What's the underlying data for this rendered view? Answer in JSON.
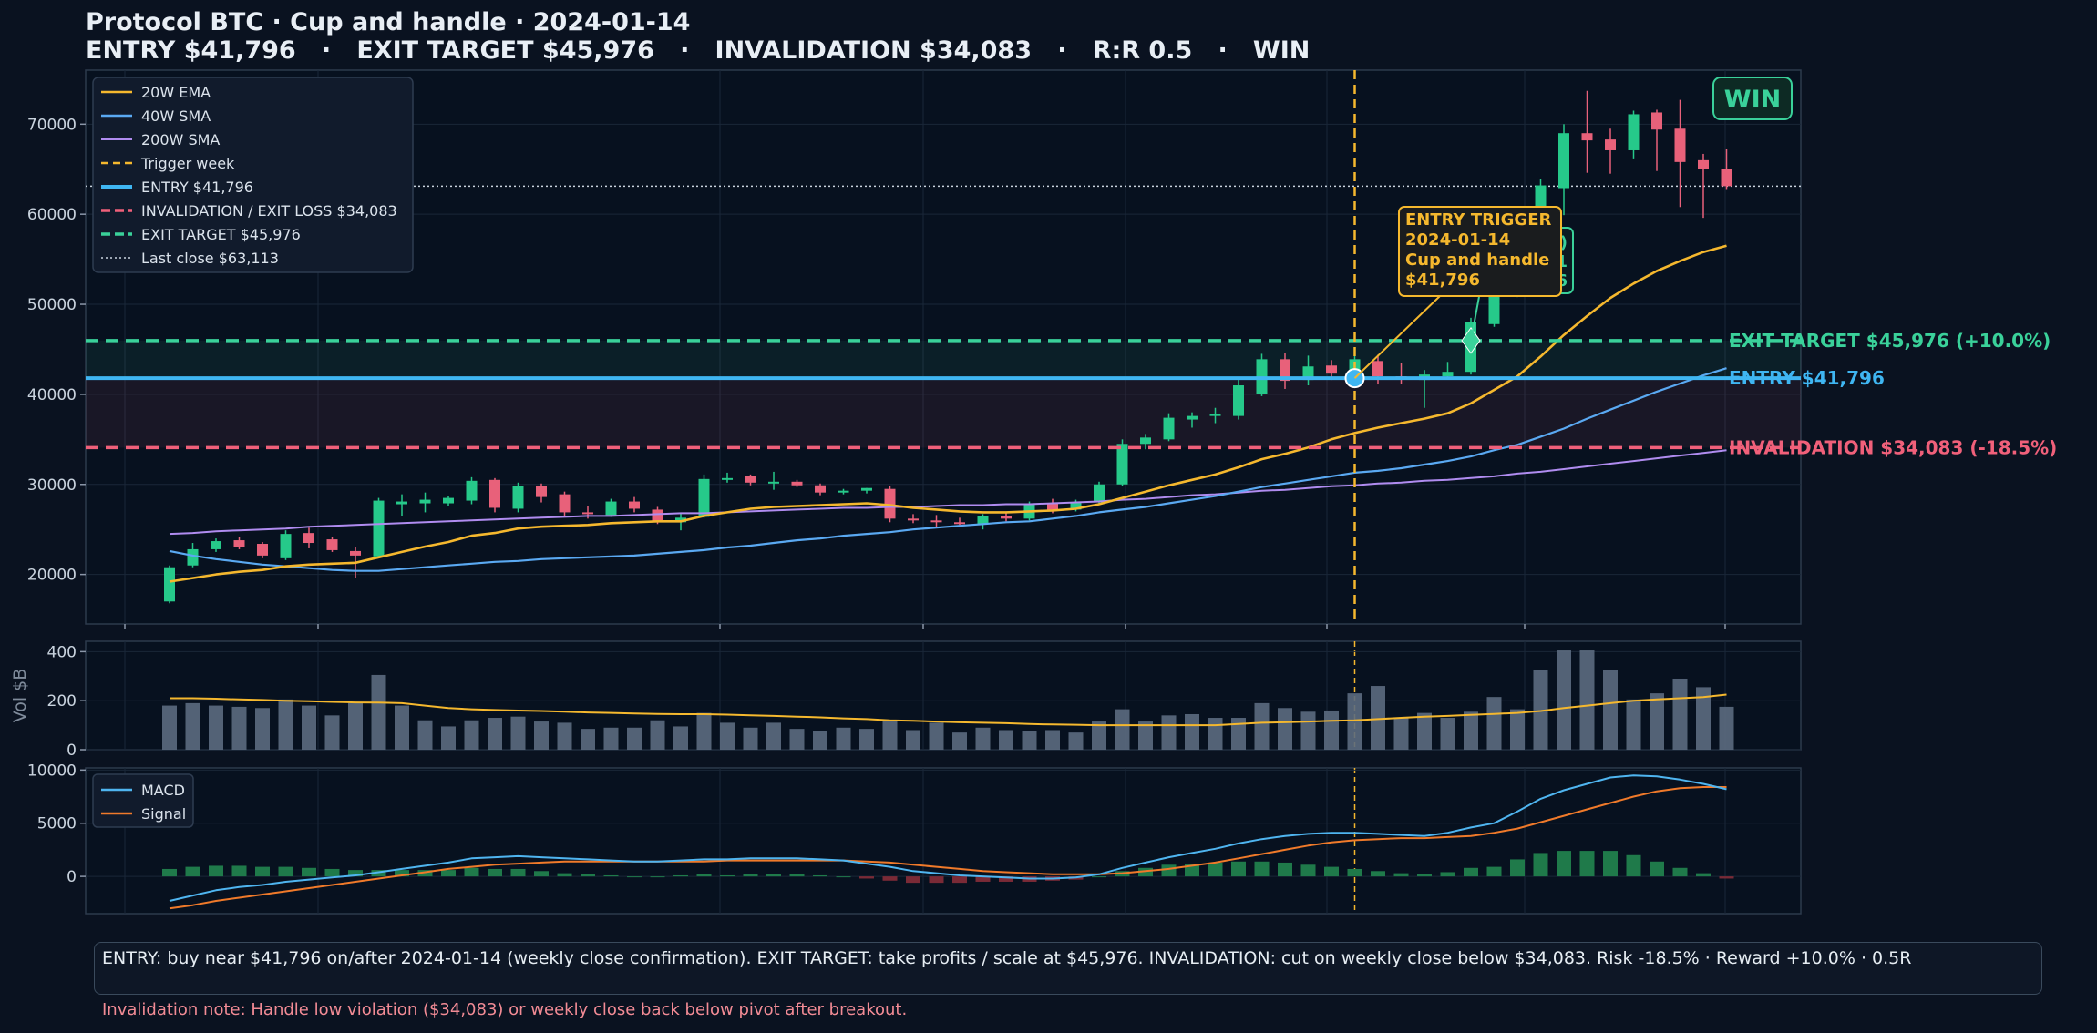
{
  "header": {
    "title_line1": "Protocol BTC · Cup and handle · 2024-01-14",
    "title_line2": "ENTRY $41,796   ·   EXIT TARGET $45,976   ·   INVALIDATION $34,083   ·   R:R 0.5   ·   WIN"
  },
  "colors": {
    "background": "#0a1220",
    "panel": "#07111f",
    "up": "#26c98a",
    "down": "#e8617a",
    "ema20": "#f5b82e",
    "sma40": "#5aa9f2",
    "sma200": "#b08cf0",
    "entry": "#3fb6f2",
    "invalidation": "#f0607a",
    "target": "#3ad19a",
    "trigger": "#f5b82e",
    "volume": "#5c6b80",
    "macd": "#4fb5f0",
    "signal": "#f07a2a"
  },
  "badge": "WIN",
  "footer": {
    "summary": "ENTRY: buy near $41,796 on/after 2024-01-14 (weekly close confirmation).   EXIT TARGET: take profits / scale at $45,976.   INVALIDATION: cut on weekly close below $34,083.   Risk -18.5% · Reward +10.0% · 0.5R",
    "note": "Invalidation note: Handle low violation ($34,083) or weekly close back below pivot after breakout."
  },
  "chart_data": {
    "type": "candlestick",
    "price_panel": {
      "ylim": [
        14500,
        76000
      ],
      "yticks": [
        "20000",
        "30000",
        "40000",
        "50000",
        "60000",
        "70000"
      ],
      "grid": true,
      "legend_position": "top-left",
      "legend": [
        "20W EMA",
        "40W SMA",
        "200W SMA",
        "Trigger week",
        "ENTRY $41,796",
        "INVALIDATION / EXIT LOSS $34,083",
        "EXIT TARGET $45,976",
        "Last close $63,113"
      ],
      "levels": {
        "entry": 41796,
        "invalidation": 34083,
        "target": 45976,
        "last_close": 63113
      },
      "level_labels": {
        "target": "EXIT TARGET  $45,976  (+10.0%)",
        "entry": "ENTRY  $41,796",
        "invalidation": "INVALIDATION  $34,083  (-18.5%)"
      },
      "trigger_index": 51,
      "exit_index": 56,
      "candles": [
        {
          "o": 17000,
          "h": 21000,
          "l": 16800,
          "c": 20800
        },
        {
          "o": 21000,
          "h": 23500,
          "l": 20800,
          "c": 22800
        },
        {
          "o": 22800,
          "h": 24000,
          "l": 22500,
          "c": 23700
        },
        {
          "o": 23800,
          "h": 24200,
          "l": 22800,
          "c": 23000
        },
        {
          "o": 23400,
          "h": 23600,
          "l": 21800,
          "c": 22100
        },
        {
          "o": 21800,
          "h": 24900,
          "l": 21600,
          "c": 24500
        },
        {
          "o": 24600,
          "h": 25200,
          "l": 22900,
          "c": 23500
        },
        {
          "o": 23900,
          "h": 24200,
          "l": 22500,
          "c": 22700
        },
        {
          "o": 22600,
          "h": 23000,
          "l": 19600,
          "c": 22100
        },
        {
          "o": 22000,
          "h": 28500,
          "l": 21900,
          "c": 28200
        },
        {
          "o": 27800,
          "h": 28900,
          "l": 26500,
          "c": 28100
        },
        {
          "o": 27900,
          "h": 29100,
          "l": 26900,
          "c": 28300
        },
        {
          "o": 27900,
          "h": 28700,
          "l": 27600,
          "c": 28500
        },
        {
          "o": 28200,
          "h": 30800,
          "l": 27800,
          "c": 30400
        },
        {
          "o": 30500,
          "h": 30700,
          "l": 26900,
          "c": 27400
        },
        {
          "o": 27300,
          "h": 30200,
          "l": 26900,
          "c": 29800
        },
        {
          "o": 29800,
          "h": 30100,
          "l": 28000,
          "c": 28600
        },
        {
          "o": 28900,
          "h": 29200,
          "l": 26500,
          "c": 26900
        },
        {
          "o": 26900,
          "h": 27600,
          "l": 26200,
          "c": 26700
        },
        {
          "o": 26600,
          "h": 28400,
          "l": 26400,
          "c": 28100
        },
        {
          "o": 28100,
          "h": 28600,
          "l": 26900,
          "c": 27300
        },
        {
          "o": 27200,
          "h": 27500,
          "l": 25600,
          "c": 25900
        },
        {
          "o": 25800,
          "h": 26800,
          "l": 24900,
          "c": 26300
        },
        {
          "o": 26400,
          "h": 31100,
          "l": 26300,
          "c": 30600
        },
        {
          "o": 30500,
          "h": 31300,
          "l": 30200,
          "c": 30700
        },
        {
          "o": 30900,
          "h": 31100,
          "l": 29900,
          "c": 30200
        },
        {
          "o": 30100,
          "h": 31400,
          "l": 29400,
          "c": 30300
        },
        {
          "o": 30300,
          "h": 30500,
          "l": 29700,
          "c": 29900
        },
        {
          "o": 29900,
          "h": 30100,
          "l": 28800,
          "c": 29100
        },
        {
          "o": 29100,
          "h": 29500,
          "l": 28900,
          "c": 29300
        },
        {
          "o": 29300,
          "h": 29600,
          "l": 29000,
          "c": 29600
        },
        {
          "o": 29500,
          "h": 29800,
          "l": 25800,
          "c": 26200
        },
        {
          "o": 26200,
          "h": 26700,
          "l": 25700,
          "c": 26000
        },
        {
          "o": 26000,
          "h": 26600,
          "l": 25300,
          "c": 25800
        },
        {
          "o": 25800,
          "h": 26300,
          "l": 25500,
          "c": 25700
        },
        {
          "o": 25600,
          "h": 26700,
          "l": 25000,
          "c": 26500
        },
        {
          "o": 26500,
          "h": 26800,
          "l": 25900,
          "c": 26200
        },
        {
          "o": 26200,
          "h": 28100,
          "l": 26000,
          "c": 27900
        },
        {
          "o": 27900,
          "h": 28400,
          "l": 26800,
          "c": 27200
        },
        {
          "o": 27200,
          "h": 28300,
          "l": 27000,
          "c": 28000
        },
        {
          "o": 28000,
          "h": 30300,
          "l": 27800,
          "c": 30000
        },
        {
          "o": 30000,
          "h": 35000,
          "l": 29800,
          "c": 34500
        },
        {
          "o": 34500,
          "h": 35600,
          "l": 33900,
          "c": 35200
        },
        {
          "o": 35000,
          "h": 37900,
          "l": 34800,
          "c": 37400
        },
        {
          "o": 37200,
          "h": 38000,
          "l": 36300,
          "c": 37600
        },
        {
          "o": 37600,
          "h": 38500,
          "l": 36800,
          "c": 37800
        },
        {
          "o": 37600,
          "h": 41600,
          "l": 37200,
          "c": 41000
        },
        {
          "o": 40000,
          "h": 44500,
          "l": 39800,
          "c": 43900
        },
        {
          "o": 43900,
          "h": 44600,
          "l": 40600,
          "c": 41500
        },
        {
          "o": 41600,
          "h": 44300,
          "l": 41000,
          "c": 43100
        },
        {
          "o": 43200,
          "h": 43800,
          "l": 41600,
          "c": 42300
        },
        {
          "o": 42100,
          "h": 44700,
          "l": 41800,
          "c": 43900
        },
        {
          "o": 43700,
          "h": 44400,
          "l": 41100,
          "c": 42000
        },
        {
          "o": 42000,
          "h": 43500,
          "l": 41200,
          "c": 41900
        },
        {
          "o": 41600,
          "h": 42700,
          "l": 38500,
          "c": 42200
        },
        {
          "o": 42000,
          "h": 43600,
          "l": 41700,
          "c": 42500
        },
        {
          "o": 42500,
          "h": 48500,
          "l": 42200,
          "c": 48000
        },
        {
          "o": 47800,
          "h": 52900,
          "l": 47500,
          "c": 51800
        },
        {
          "o": 51500,
          "h": 57300,
          "l": 50800,
          "c": 57000
        },
        {
          "o": 57000,
          "h": 63900,
          "l": 56500,
          "c": 63200
        },
        {
          "o": 62900,
          "h": 70000,
          "l": 59900,
          "c": 69000
        },
        {
          "o": 69000,
          "h": 73700,
          "l": 64600,
          "c": 68200
        },
        {
          "o": 68300,
          "h": 69500,
          "l": 64500,
          "c": 67100
        },
        {
          "o": 67100,
          "h": 71500,
          "l": 66200,
          "c": 71100
        },
        {
          "o": 71300,
          "h": 71600,
          "l": 64800,
          "c": 69400
        },
        {
          "o": 69500,
          "h": 72700,
          "l": 60800,
          "c": 65800
        },
        {
          "o": 66000,
          "h": 66700,
          "l": 59600,
          "c": 65000
        },
        {
          "o": 65000,
          "h": 67200,
          "l": 62700,
          "c": 63113
        }
      ],
      "ema20": [
        19200,
        19600,
        20000,
        20300,
        20500,
        20900,
        21100,
        21200,
        21300,
        21900,
        22500,
        23100,
        23600,
        24300,
        24600,
        25100,
        25300,
        25400,
        25500,
        25700,
        25800,
        25900,
        25900,
        26500,
        26900,
        27300,
        27500,
        27600,
        27700,
        27800,
        27900,
        27700,
        27400,
        27200,
        27000,
        26900,
        26900,
        27000,
        27100,
        27300,
        27800,
        28500,
        29200,
        29900,
        30500,
        31100,
        31900,
        32800,
        33400,
        34100,
        35000,
        35700,
        36300,
        36800,
        37300,
        37900,
        39000,
        40500,
        42000,
        44200,
        46600,
        48700,
        50700,
        52300,
        53700,
        54800,
        55800,
        56500
      ],
      "sma40": [
        22600,
        22100,
        21700,
        21400,
        21100,
        20900,
        20700,
        20500,
        20400,
        20400,
        20600,
        20800,
        21000,
        21200,
        21400,
        21500,
        21700,
        21800,
        21900,
        22000,
        22100,
        22300,
        22500,
        22700,
        23000,
        23200,
        23500,
        23800,
        24000,
        24300,
        24500,
        24700,
        25000,
        25200,
        25400,
        25600,
        25800,
        25900,
        26200,
        26500,
        26900,
        27200,
        27500,
        27900,
        28300,
        28700,
        29200,
        29700,
        30100,
        30500,
        30900,
        31300,
        31500,
        31800,
        32200,
        32600,
        33100,
        33800,
        34400,
        35300,
        36200,
        37300,
        38300,
        39300,
        40300,
        41200,
        42100,
        42900
      ],
      "sma200": [
        24500,
        24600,
        24800,
        24900,
        25000,
        25100,
        25300,
        25400,
        25500,
        25600,
        25700,
        25800,
        25900,
        26000,
        26100,
        26200,
        26300,
        26400,
        26500,
        26500,
        26600,
        26700,
        26800,
        26800,
        26900,
        27000,
        27100,
        27200,
        27300,
        27400,
        27400,
        27500,
        27500,
        27600,
        27700,
        27700,
        27800,
        27800,
        27900,
        28000,
        28100,
        28300,
        28400,
        28600,
        28800,
        28900,
        29100,
        29300,
        29400,
        29600,
        29800,
        29900,
        30100,
        30200,
        30400,
        30500,
        30700,
        30900,
        31200,
        31400,
        31700,
        32000,
        32300,
        32600,
        32900,
        33200,
        33500,
        33800
      ]
    },
    "annotations": {
      "trigger_box": [
        "ENTRY TRIGGER",
        "2024-01-14",
        "Cup and handle",
        "$41,796"
      ],
      "exit_box_partial": [
        "VIN)",
        "2-11",
        "6"
      ]
    },
    "volume_panel": {
      "ylabel": "Vol $B",
      "ylim": [
        0,
        420
      ],
      "yticks": [
        "0",
        "200",
        "400"
      ],
      "values": [
        180,
        190,
        180,
        175,
        170,
        205,
        180,
        140,
        190,
        305,
        180,
        120,
        95,
        120,
        130,
        135,
        115,
        110,
        85,
        90,
        90,
        120,
        95,
        150,
        110,
        90,
        110,
        85,
        75,
        90,
        85,
        120,
        80,
        110,
        70,
        90,
        80,
        75,
        80,
        70,
        115,
        165,
        115,
        140,
        145,
        130,
        130,
        190,
        170,
        155,
        160,
        230,
        260,
        130,
        150,
        130,
        155,
        215,
        165,
        325,
        405,
        405,
        325,
        205,
        230,
        290,
        255,
        175
      ],
      "ma": [
        210,
        210,
        208,
        205,
        203,
        200,
        198,
        195,
        193,
        192,
        190,
        180,
        170,
        165,
        162,
        160,
        158,
        155,
        152,
        150,
        148,
        146,
        145,
        145,
        143,
        140,
        138,
        135,
        132,
        128,
        125,
        120,
        118,
        115,
        112,
        110,
        108,
        105,
        103,
        102,
        100,
        100,
        100,
        100,
        100,
        100,
        105,
        110,
        112,
        115,
        118,
        120,
        125,
        130,
        135,
        138,
        142,
        146,
        150,
        158,
        170,
        180,
        190,
        200,
        205,
        210,
        215,
        225
      ]
    },
    "macd_panel": {
      "ylim": [
        -3500,
        10200
      ],
      "yticks": [
        "0",
        "5000",
        "10000"
      ],
      "legend": [
        "MACD",
        "Signal"
      ],
      "macd": [
        -2300,
        -1800,
        -1300,
        -1000,
        -800,
        -500,
        -300,
        -100,
        100,
        400,
        700,
        1000,
        1300,
        1700,
        1800,
        1900,
        1800,
        1700,
        1600,
        1500,
        1400,
        1400,
        1500,
        1600,
        1600,
        1700,
        1700,
        1700,
        1600,
        1500,
        1200,
        900,
        500,
        300,
        100,
        0,
        -100,
        -200,
        -200,
        -100,
        200,
        800,
        1300,
        1800,
        2200,
        2600,
        3100,
        3500,
        3800,
        4000,
        4100,
        4100,
        4000,
        3900,
        3800,
        4100,
        4600,
        5000,
        6100,
        7300,
        8100,
        8700,
        9300,
        9500,
        9400,
        9100,
        8700,
        8200
      ],
      "signal": [
        -3000,
        -2700,
        -2300,
        -2000,
        -1700,
        -1400,
        -1100,
        -800,
        -500,
        -200,
        100,
        400,
        700,
        900,
        1100,
        1200,
        1300,
        1400,
        1400,
        1400,
        1400,
        1400,
        1400,
        1400,
        1500,
        1500,
        1500,
        1500,
        1500,
        1500,
        1400,
        1300,
        1100,
        900,
        700,
        500,
        400,
        300,
        200,
        200,
        200,
        300,
        500,
        700,
        1000,
        1300,
        1700,
        2100,
        2500,
        2900,
        3200,
        3400,
        3500,
        3600,
        3600,
        3700,
        3800,
        4100,
        4500,
        5100,
        5700,
        6300,
        6900,
        7500,
        8000,
        8300,
        8400,
        8400
      ]
    },
    "x_axis": {
      "ticks_visible": false
    }
  }
}
